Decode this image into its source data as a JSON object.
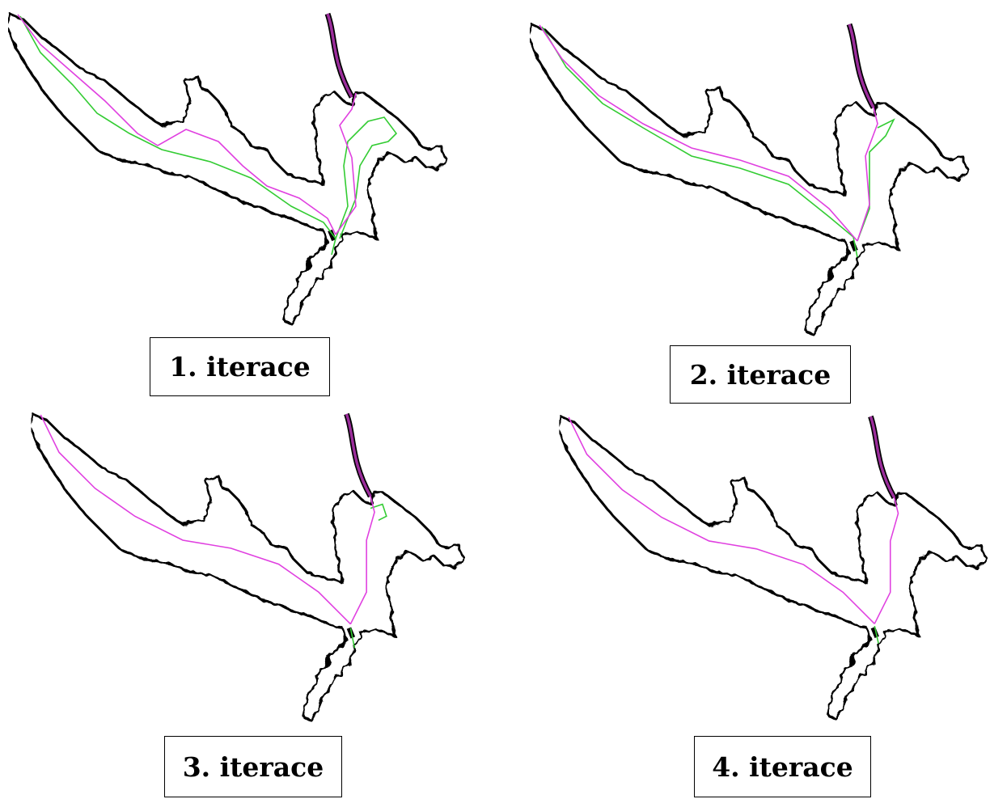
{
  "panels": [
    {
      "label": "1. iterace"
    },
    {
      "label": "2. iterace"
    },
    {
      "label": "3. iterace"
    },
    {
      "label": "4. iterace"
    }
  ]
}
